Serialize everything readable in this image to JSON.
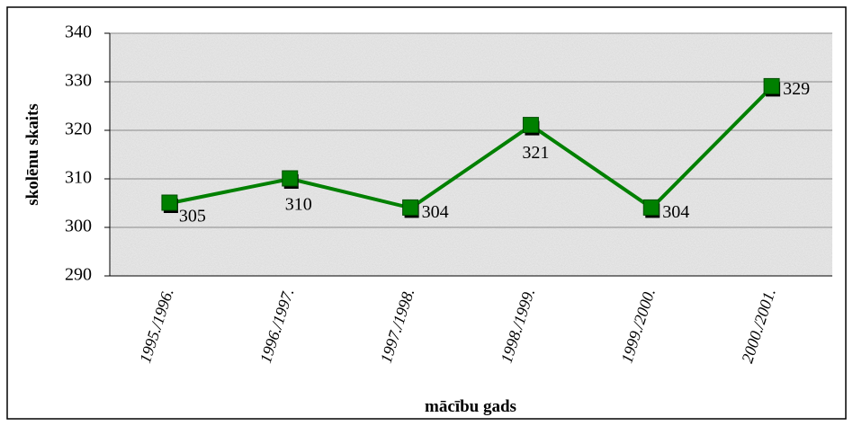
{
  "chart_data": {
    "type": "line",
    "x_label": "mācību gads",
    "y_label": "skolēnu skaits",
    "categories": [
      "1995./1996.",
      "1996./1997.",
      "1997./1998.",
      "1998./1999.",
      "1999./2000.",
      "2000./2001."
    ],
    "series": [
      {
        "name": "skolēnu skaits",
        "color": "#008000",
        "values": [
          305,
          310,
          304,
          321,
          304,
          329
        ]
      }
    ],
    "ylim": [
      290,
      340
    ],
    "yticks": [
      290,
      300,
      310,
      320,
      330,
      340
    ],
    "grid": true
  }
}
